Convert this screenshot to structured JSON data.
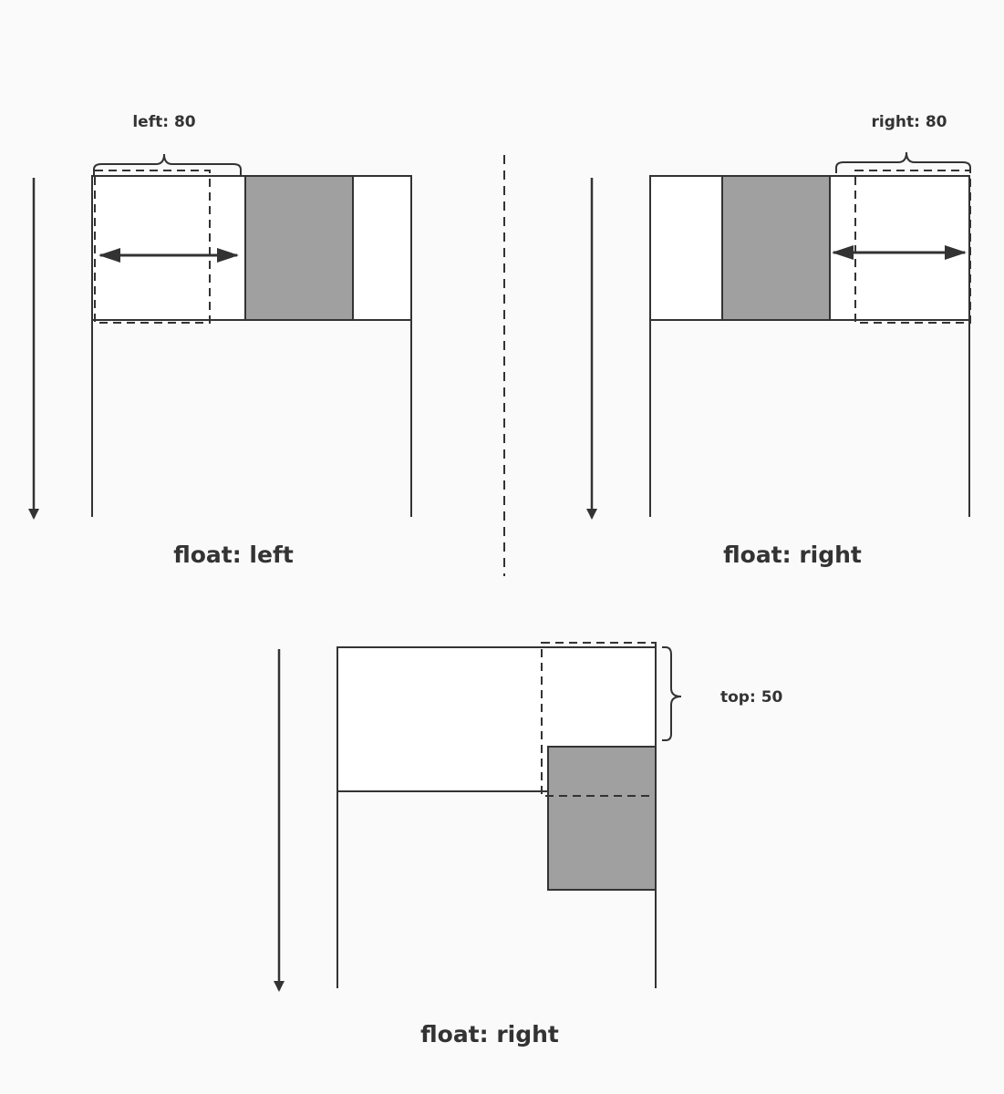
{
  "colors": {
    "background": "#fafafa",
    "stroke": "#333333",
    "box_fill": "#ffffff",
    "float_fill": "#a0a0a0"
  },
  "panels": {
    "left": {
      "offset_label": "left: 80",
      "caption": "float: left"
    },
    "right": {
      "offset_label": "right: 80",
      "caption": "float: right"
    },
    "bottom": {
      "offset_label": "top: 50",
      "caption": "float: right"
    }
  }
}
